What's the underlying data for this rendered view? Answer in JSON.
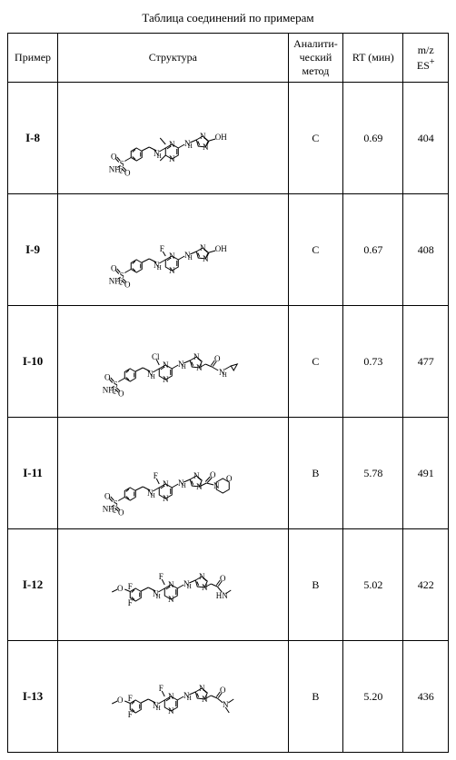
{
  "title": "Таблица соединений по примерам",
  "columns": {
    "example": "Пример",
    "structure": "Структура",
    "method": "Аналити-ческий метод",
    "rt": "RT (мин)",
    "mz_line1": "m/z",
    "mz_line2": "ES",
    "mz_sup": "+"
  },
  "rows": [
    {
      "ex": "I-8",
      "method": "C",
      "rt": "0.69",
      "mz": "404",
      "struct": "s1"
    },
    {
      "ex": "I-9",
      "method": "C",
      "rt": "0.67",
      "mz": "408",
      "struct": "s2"
    },
    {
      "ex": "I-10",
      "method": "C",
      "rt": "0.73",
      "mz": "477",
      "struct": "s3"
    },
    {
      "ex": "I-11",
      "method": "B",
      "rt": "5.78",
      "mz": "491",
      "struct": "s4"
    },
    {
      "ex": "I-12",
      "method": "B",
      "rt": "5.02",
      "mz": "422",
      "struct": "s5"
    },
    {
      "ex": "I-13",
      "method": "B",
      "rt": "5.20",
      "mz": "436",
      "struct": "s6"
    }
  ],
  "style": {
    "border_color": "#000000",
    "bg": "#ffffff",
    "font": "Times New Roman",
    "title_size": 13,
    "cell_size": 12
  }
}
